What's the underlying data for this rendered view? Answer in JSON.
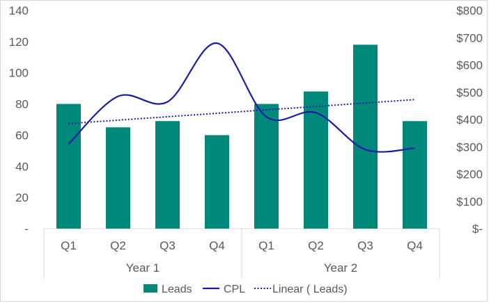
{
  "chart_data": {
    "type": "bar",
    "title": "",
    "xlabel": "",
    "ylabel": "",
    "categories": [
      "Q1",
      "Q2",
      "Q3",
      "Q4",
      "Q1",
      "Q2",
      "Q3",
      "Q4"
    ],
    "groups": [
      {
        "label": "Year 1",
        "span": 4
      },
      {
        "label": "Year 2",
        "span": 4
      }
    ],
    "ylim": [
      0,
      140
    ],
    "y_ticks": [
      0,
      20,
      40,
      60,
      80,
      100,
      120,
      140
    ],
    "y_tick_labels": [
      "-",
      "20",
      "40",
      "60",
      "80",
      "100",
      "120",
      "140"
    ],
    "y2lim": [
      0,
      800
    ],
    "y2_ticks": [
      0,
      100,
      200,
      300,
      400,
      500,
      600,
      700,
      800
    ],
    "y2_tick_labels": [
      "$-",
      "$100",
      "$200",
      "$300",
      "$400",
      "$500",
      "$600",
      "$700",
      "$800"
    ],
    "series": [
      {
        "name": "Leads",
        "type": "bar",
        "axis": "left",
        "color": "#00897b",
        "values": [
          80,
          65,
          69,
          60,
          80,
          88,
          118,
          69
        ]
      },
      {
        "name": "CPL",
        "type": "line",
        "axis": "right",
        "smooth": true,
        "color": "#1a1aa6",
        "values": [
          310,
          485,
          465,
          680,
          410,
          425,
          290,
          295
        ]
      },
      {
        "name": "Linear ( Leads)",
        "type": "trendline",
        "of": "Leads",
        "style": "dotted",
        "color": "#1a1aa6",
        "values": [
          67.4,
          69.6,
          71.8,
          74.0,
          76.2,
          78.4,
          80.6,
          82.8
        ]
      }
    ],
    "grid": false,
    "legend": "bottom"
  }
}
